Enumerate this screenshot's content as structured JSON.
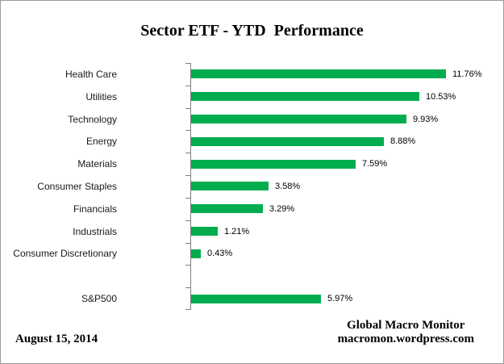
{
  "title": "Sector ETF - YTD  Performance",
  "chart_data": {
    "type": "bar",
    "orientation": "horizontal",
    "title": "Sector ETF - YTD  Performance",
    "categories": [
      "Health Care",
      "Utilities",
      "Technology",
      "Energy",
      "Materials",
      "Consumer Staples",
      "Financials",
      "Industrials",
      "Consumer Discretionary",
      "",
      "S&P500"
    ],
    "values": [
      11.76,
      10.53,
      9.93,
      8.88,
      7.59,
      3.58,
      3.29,
      1.21,
      0.43,
      null,
      5.97
    ],
    "data_labels": [
      "11.76%",
      "10.53%",
      "9.93%",
      "8.88%",
      "7.59%",
      "3.58%",
      "3.29%",
      "1.21%",
      "0.43%",
      "",
      "5.97%"
    ],
    "xlabel": "",
    "ylabel": "",
    "xlim": [
      0,
      13.6
    ],
    "grid": false,
    "legend": false,
    "bar_color": "#00AC4E",
    "axis_color": "#808080"
  },
  "footer": {
    "date": "August 15, 2014",
    "source_line1": "Global Macro Monitor",
    "source_line2": "macromon.wordpress.com"
  }
}
